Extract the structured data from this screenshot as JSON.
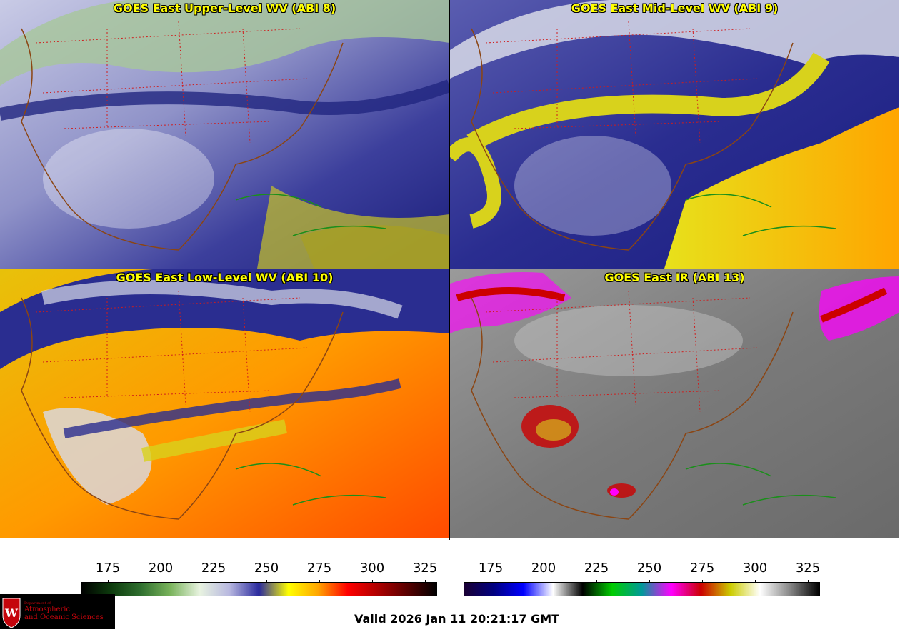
{
  "panels": [
    {
      "title": "GOES East Upper-Level WV (ABI 8)"
    },
    {
      "title": "GOES East Mid-Level WV (ABI 9)"
    },
    {
      "title": "GOES East Low-Level WV (ABI 10)"
    },
    {
      "title": "GOES East IR (ABI 13)"
    }
  ],
  "colorbars": {
    "wv": {
      "ticks": [
        "175",
        "200",
        "225",
        "250",
        "275",
        "300",
        "325"
      ],
      "colors": [
        "#000000",
        "#0d3b0d",
        "#2f6f2f",
        "#79b35b",
        "#e8f3e0",
        "#b8b8e0",
        "#2a2a9e",
        "#ffff00",
        "#ffa500",
        "#ff0000",
        "#b00000",
        "#5a0000",
        "#000000"
      ]
    },
    "ir": {
      "ticks": [
        "175",
        "200",
        "225",
        "250",
        "275",
        "300",
        "325"
      ],
      "colors": [
        "#1a0033",
        "#000080",
        "#0000ff",
        "#ffffff",
        "#000000",
        "#00cc00",
        "#009999",
        "#ff00ff",
        "#cc0000",
        "#cccc00",
        "#ffffff",
        "#888888",
        "#000000"
      ]
    }
  },
  "valid_time": "Valid 2026 Jan 11 20:21:17 GMT",
  "logo": {
    "dept_line": "Department of",
    "name_line1": "Atmospheric",
    "name_line2": "and Oceanic Sciences"
  }
}
